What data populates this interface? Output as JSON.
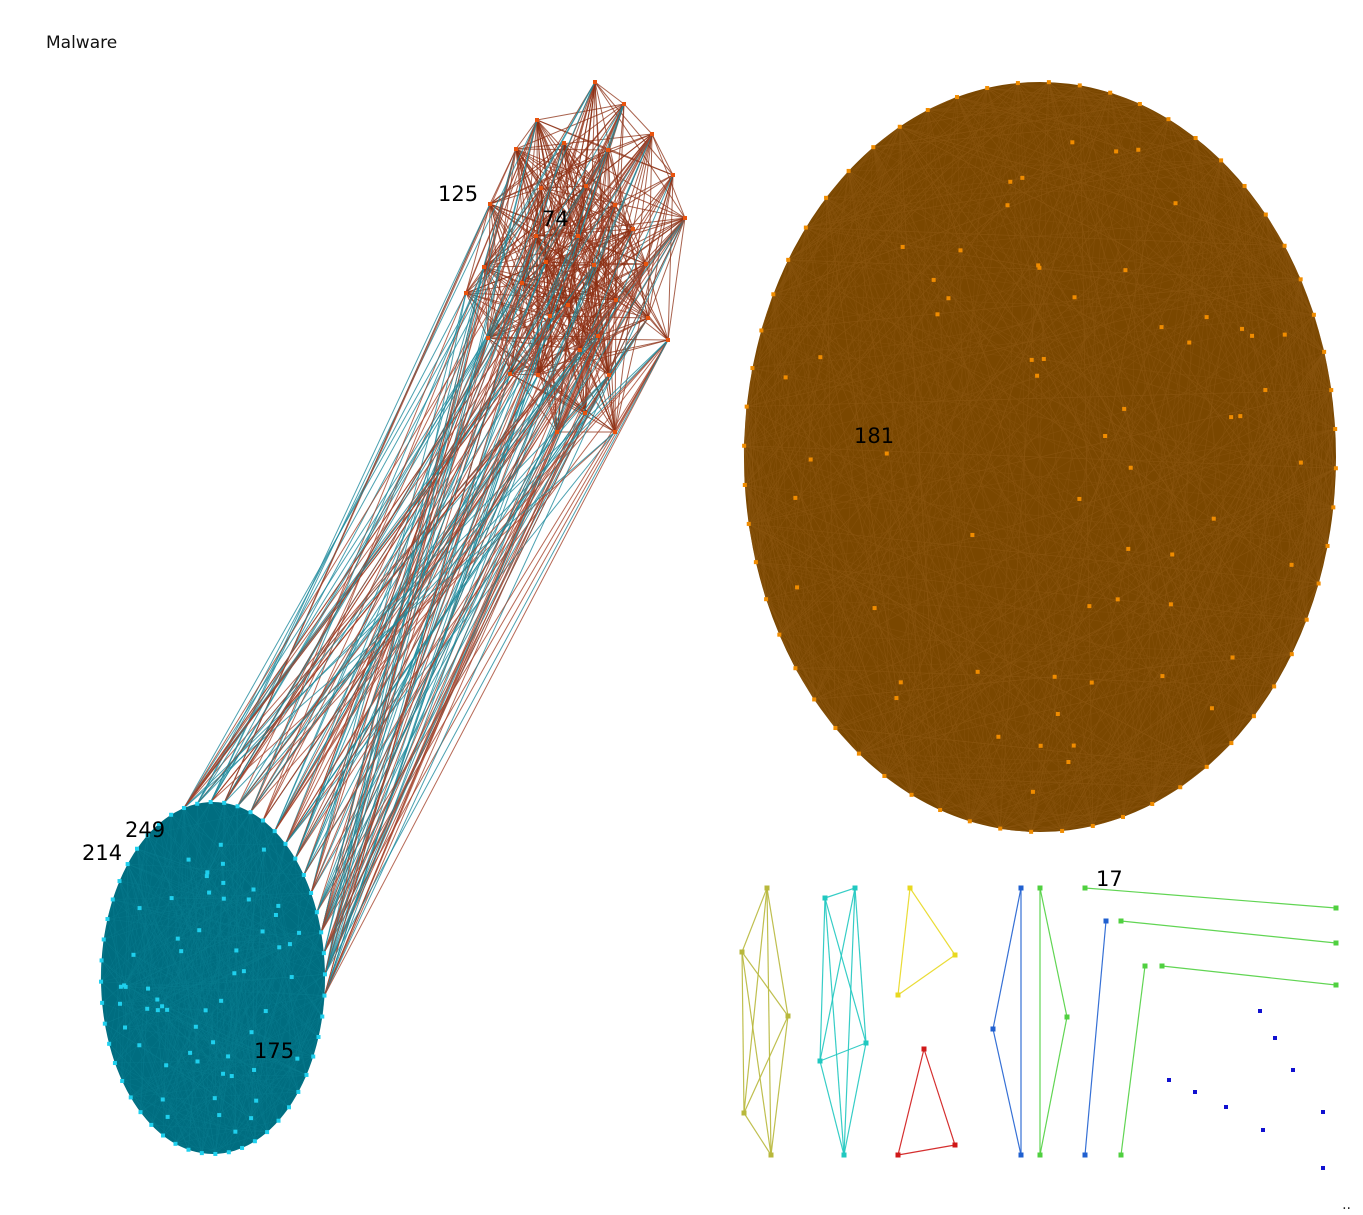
{
  "title": "Malware",
  "corner_mark": "..",
  "node_labels": {
    "n125": "125",
    "n74": "74",
    "n181": "181",
    "n249": "249",
    "n214": "214",
    "n175": "175",
    "n17": "17"
  },
  "colors": {
    "background": "#ffffff",
    "cluster_red_nodes": "#e8530e",
    "cluster_red_edges": "#8b2e12",
    "cluster_brown_nodes": "#f08c00",
    "cluster_brown_edges": "#7a4700",
    "cluster_teal_nodes": "#1fd0ee",
    "cluster_teal_edges": "#006d80",
    "inter_cluster_edges": [
      "#1e8a9c",
      "#a4422a"
    ],
    "olive": "#b8b83c",
    "aqua": "#20c8c0",
    "yellow": "#e8d820",
    "red": "#d01818",
    "blue": "#2060d0",
    "green": "#50d040",
    "deep_blue": "#1010d0"
  },
  "clusters": [
    {
      "name": "red-cluster",
      "node_count": 21,
      "color": "red"
    },
    {
      "name": "brown-cluster",
      "node_count": 120,
      "color": "brown"
    },
    {
      "name": "teal-cluster",
      "node_count": 110,
      "color": "teal"
    }
  ]
}
